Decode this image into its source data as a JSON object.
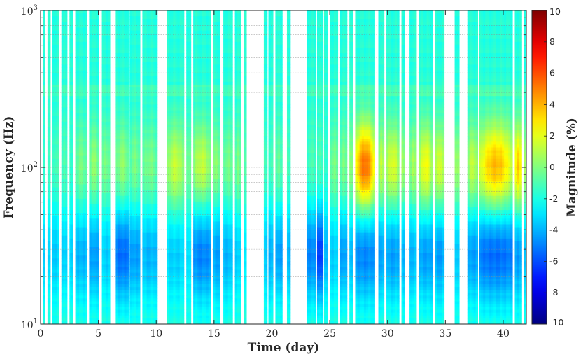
{
  "chart_data": {
    "type": "heatmap",
    "title": "",
    "xlabel": "Time (day)",
    "ylabel": "Frequency (Hz)",
    "colorbar_label": "Magnitude (%)",
    "xlim": [
      0,
      42
    ],
    "ylim": [
      10,
      1000
    ],
    "yscale": "log",
    "xticks": [
      0,
      5,
      10,
      15,
      20,
      25,
      30,
      35,
      40
    ],
    "yticks": [
      {
        "value": 10,
        "base": "10",
        "exp": "1"
      },
      {
        "value": 100,
        "base": "10",
        "exp": "2"
      },
      {
        "value": 1000,
        "base": "10",
        "exp": "3"
      }
    ],
    "clim": [
      -10,
      10
    ],
    "colorbar_ticks": [
      10,
      8,
      6,
      4,
      2,
      0,
      -2,
      -4,
      -6,
      -8,
      -10
    ],
    "colormap": "jet",
    "grid": true,
    "gap_color": "#ffffff",
    "data_segments": [
      {
        "start": 0.2,
        "end": 0.4,
        "peak": -1.5,
        "low": -3.5
      },
      {
        "start": 0.6,
        "end": 0.85,
        "peak": -1.5,
        "low": -3.5
      },
      {
        "start": 1.0,
        "end": 1.6,
        "peak": -1.0,
        "low": -3.5
      },
      {
        "start": 1.8,
        "end": 2.3,
        "peak": -1.0,
        "low": -3.5
      },
      {
        "start": 2.5,
        "end": 2.8,
        "peak": -1.5,
        "low": -3.5
      },
      {
        "start": 3.0,
        "end": 4.0,
        "peak": 0.0,
        "low": -4.0
      },
      {
        "start": 4.2,
        "end": 5.0,
        "peak": 0.5,
        "low": -4.5
      },
      {
        "start": 5.3,
        "end": 6.0,
        "peak": 0.0,
        "low": -3.5
      },
      {
        "start": 6.5,
        "end": 7.6,
        "peak": 0.5,
        "low": -5.5
      },
      {
        "start": 7.7,
        "end": 8.6,
        "peak": 0.0,
        "low": -4.5
      },
      {
        "start": 8.8,
        "end": 10.1,
        "peak": 0.0,
        "low": -4.0
      },
      {
        "start": 10.9,
        "end": 12.4,
        "peak": 1.5,
        "low": -3.5
      },
      {
        "start": 12.6,
        "end": 13.0,
        "peak": 0.0,
        "low": -3.0
      },
      {
        "start": 13.2,
        "end": 14.7,
        "peak": 1.5,
        "low": -5.0
      },
      {
        "start": 14.9,
        "end": 15.5,
        "peak": 0.5,
        "low": -4.5
      },
      {
        "start": 15.8,
        "end": 16.6,
        "peak": 0.0,
        "low": -4.0
      },
      {
        "start": 16.8,
        "end": 17.3,
        "peak": 0.0,
        "low": -3.5
      },
      {
        "start": 17.6,
        "end": 17.8,
        "peak": -1.0,
        "low": -3.0
      },
      {
        "start": 19.3,
        "end": 19.6,
        "peak": -1.0,
        "low": -3.5
      },
      {
        "start": 19.7,
        "end": 20.1,
        "peak": -1.0,
        "low": -4.0
      },
      {
        "start": 20.3,
        "end": 20.9,
        "peak": -0.5,
        "low": -4.5
      },
      {
        "start": 21.3,
        "end": 21.6,
        "peak": -1.0,
        "low": -4.0
      },
      {
        "start": 23.0,
        "end": 23.8,
        "peak": -1.0,
        "low": -5.0
      },
      {
        "start": 23.9,
        "end": 24.4,
        "peak": -1.0,
        "low": -6.5
      },
      {
        "start": 24.5,
        "end": 24.8,
        "peak": -1.5,
        "low": -4.0
      },
      {
        "start": 25.0,
        "end": 25.7,
        "peak": 0.0,
        "low": -3.5
      },
      {
        "start": 25.9,
        "end": 26.5,
        "peak": 0.0,
        "low": -4.5
      },
      {
        "start": 26.7,
        "end": 27.0,
        "peak": 0.5,
        "low": -4.0
      },
      {
        "start": 27.2,
        "end": 28.9,
        "peak": 5.5,
        "low": -5.0
      },
      {
        "start": 29.2,
        "end": 29.7,
        "peak": 1.5,
        "low": -4.5
      },
      {
        "start": 29.9,
        "end": 31.0,
        "peak": 2.0,
        "low": -4.5
      },
      {
        "start": 31.2,
        "end": 31.5,
        "peak": 1.0,
        "low": -4.0
      },
      {
        "start": 31.9,
        "end": 32.5,
        "peak": 1.0,
        "low": -4.0
      },
      {
        "start": 32.7,
        "end": 33.9,
        "peak": 2.5,
        "low": -4.5
      },
      {
        "start": 34.1,
        "end": 34.9,
        "peak": 2.0,
        "low": -4.5
      },
      {
        "start": 35.8,
        "end": 36.2,
        "peak": 1.0,
        "low": -3.5
      },
      {
        "start": 36.9,
        "end": 37.8,
        "peak": 1.5,
        "low": -4.5
      },
      {
        "start": 37.9,
        "end": 40.8,
        "peak": 4.0,
        "low": -5.5
      },
      {
        "start": 41.0,
        "end": 41.6,
        "peak": 4.0,
        "low": -4.5
      },
      {
        "start": 41.8,
        "end": 42.0,
        "peak": 1.0,
        "low": -3.5
      }
    ]
  }
}
